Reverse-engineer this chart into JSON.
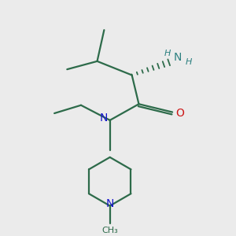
{
  "background_color": "#ebebeb",
  "bond_color": "#2d6b4a",
  "nitrogen_color": "#1515cc",
  "oxygen_color": "#cc1515",
  "nh2_color": "#2d8080",
  "figsize": [
    3.0,
    3.0
  ],
  "dpi": 100,
  "xlim": [
    0,
    10
  ],
  "ylim": [
    0,
    10
  ]
}
